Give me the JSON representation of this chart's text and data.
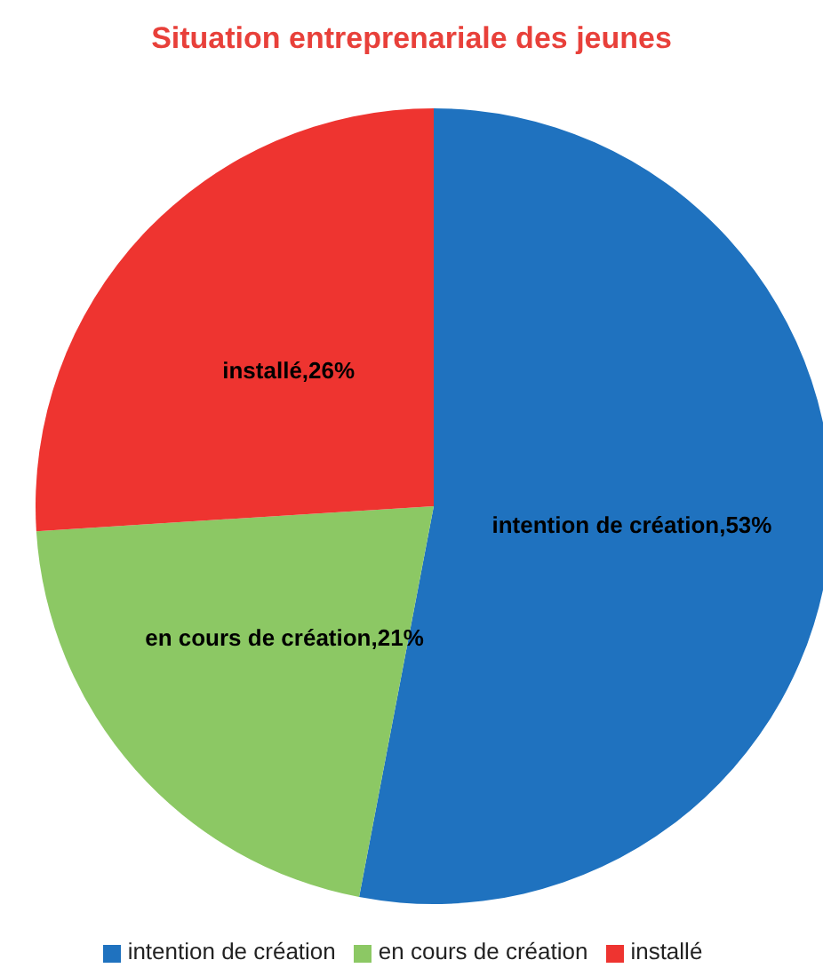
{
  "chart_data": {
    "type": "pie",
    "title": "Situation entreprenariale des jeunes",
    "categories": [
      "intention de création",
      "en cours de création",
      "installé"
    ],
    "values": [
      53,
      21,
      26
    ],
    "colors": [
      "#1f72bf",
      "#8cc864",
      "#ee3430"
    ],
    "value_labels": [
      "intention de création,53%",
      "en cours de création,21%",
      "installé,26%"
    ],
    "legend": "bottom"
  }
}
